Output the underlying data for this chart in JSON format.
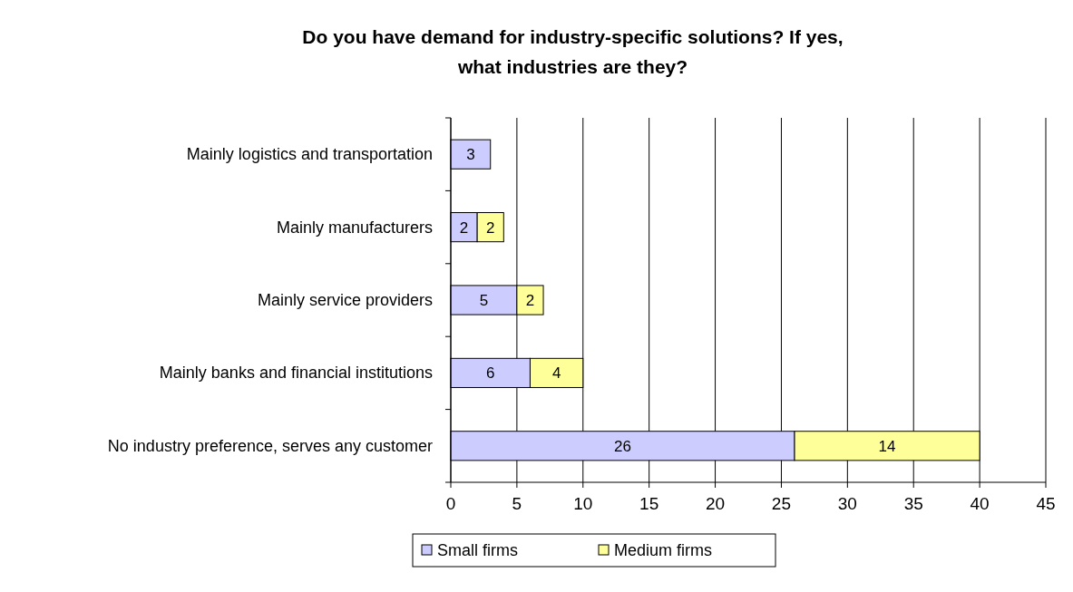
{
  "chart_data": {
    "type": "bar",
    "title": "Do you have demand for industry-specific solutions? If yes, what industries are they?",
    "orientation": "horizontal",
    "stacked": true,
    "categories": [
      "Mainly logistics and transportation",
      "Mainly manufacturers",
      "Mainly service providers",
      "Mainly banks and financial institutions",
      "No industry preference, serves any customer"
    ],
    "series": [
      {
        "name": "Small firms",
        "color": "#ccccff",
        "values": [
          3,
          2,
          5,
          6,
          26
        ]
      },
      {
        "name": "Medium firms",
        "color": "#ffff99",
        "values": [
          null,
          2,
          2,
          4,
          14
        ]
      }
    ],
    "xlim": [
      0,
      45
    ],
    "xticks": [
      0,
      5,
      10,
      15,
      20,
      25,
      30,
      35,
      40,
      45
    ],
    "grid": "x",
    "legend": "bottom",
    "data_labels": true
  }
}
